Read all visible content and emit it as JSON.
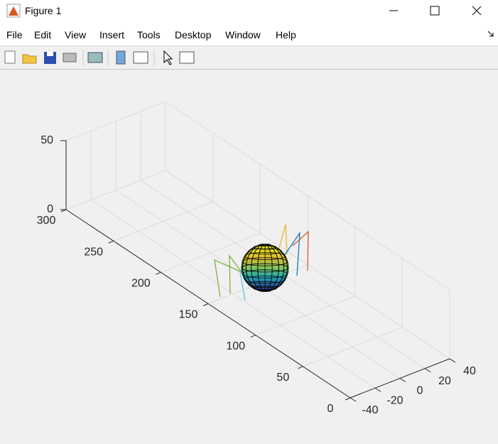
{
  "window": {
    "title": "Figure 1"
  },
  "menu": [
    "File",
    "Edit",
    "View",
    "Insert",
    "Tools",
    "Desktop",
    "Window",
    "Help"
  ],
  "axes": {
    "xlim": [
      -40,
      40
    ],
    "ylim": [
      0,
      300
    ],
    "zlim": [
      0,
      50
    ],
    "xticks": [
      -40,
      -20,
      0,
      20,
      40
    ],
    "yticks": [
      0,
      50,
      100,
      150,
      200,
      250,
      300
    ],
    "zticks": [
      0,
      50
    ]
  }
}
